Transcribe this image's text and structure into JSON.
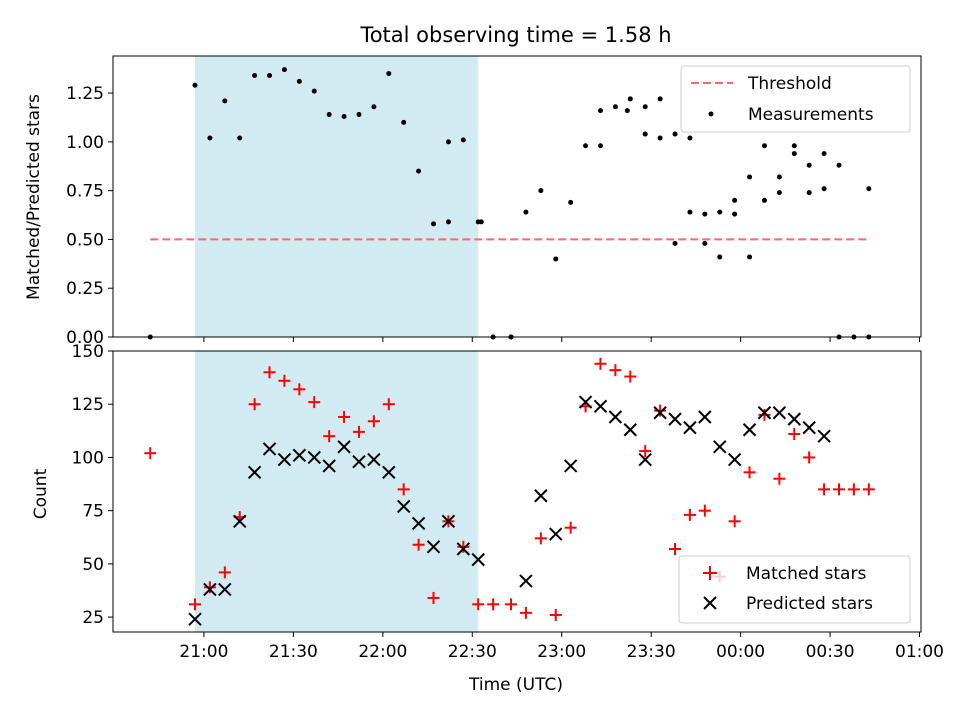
{
  "chart_data": {
    "title": "Total observing time = 1.58 h",
    "xlabel": "Time (UTC)",
    "x_tick_labels": [
      "21:00",
      "21:30",
      "22:00",
      "22:30",
      "23:00",
      "23:30",
      "00:00",
      "00:30",
      "01:00"
    ],
    "x_ticks_min": [
      60,
      90,
      120,
      150,
      180,
      210,
      240,
      270,
      300
    ],
    "xlim_min": [
      29.5,
      300.5
    ],
    "shaded_region_min": [
      57,
      152
    ],
    "shade_color": "#add8e6",
    "panels": [
      {
        "type": "scatter",
        "ylabel": "Matched/Predicted stars",
        "ylim": [
          0,
          1.44
        ],
        "y_ticks": [
          0.0,
          0.25,
          0.5,
          0.75,
          1.0,
          1.25
        ],
        "y_tick_labels": [
          "0.00",
          "0.25",
          "0.50",
          "0.75",
          "1.00",
          "1.25"
        ],
        "threshold": {
          "name": "Threshold",
          "value": 0.5,
          "x_range_min": [
            42,
            283
          ],
          "color": "#ff6666"
        },
        "series": [
          {
            "name": "Measurements",
            "color": "#000000",
            "x_min": [
              42,
              57,
              62,
              67,
              72,
              77,
              82,
              87,
              92,
              97,
              102,
              107,
              112,
              117,
              122,
              127,
              132,
              137,
              142,
              147,
              152,
              157,
              163,
              193,
              202,
              208,
              213,
              218,
              223,
              228,
              233,
              238,
              243,
              248,
              253,
              258,
              263,
              268,
              273,
              283,
              142,
              153,
              163,
              168,
              173,
              178,
              183,
              188,
              193,
              198,
              203,
              208,
              213,
              218,
              223,
              228,
              233,
              238,
              243,
              248,
              253,
              258,
              263,
              268,
              273,
              278,
              283
            ],
            "y": [
              0.0,
              1.29,
              1.02,
              1.21,
              1.02,
              1.34,
              1.34,
              1.37,
              1.31,
              1.26,
              1.14,
              1.13,
              1.14,
              1.18,
              1.35,
              1.1,
              0.85,
              0.58,
              1.0,
              1.01,
              0.59,
              0.0,
              0.0,
              0.98,
              1.16,
              1.18,
              1.22,
              1.04,
              1.02,
              0.48,
              0.64,
              0.63,
              0.41,
              0.7,
              0.82,
              0.98,
              0.74,
              0.94,
              0.88,
              0.76,
              0.59,
              0.59,
              0.0,
              0.64,
              0.75,
              0.4,
              0.69,
              0.98,
              1.16,
              1.18,
              1.22,
              1.04,
              1.02,
              0.48,
              0.64,
              0.63,
              0.41,
              0.7,
              0.82,
              0.98,
              0.74,
              0.94,
              0.88,
              0.76,
              0.0,
              0.0,
              0.0
            ]
          }
        ]
      },
      {
        "type": "scatter",
        "ylabel": "Count",
        "ylim": [
          18,
          150
        ],
        "y_ticks": [
          25,
          50,
          75,
          100,
          125,
          150
        ],
        "y_tick_labels": [
          "25",
          "50",
          "75",
          "100",
          "125",
          "150"
        ],
        "series": [
          {
            "name": "Matched stars",
            "marker": "plus",
            "color": "#ff0000",
            "x_min": [
              42,
              57,
              62,
              67,
              72,
              77,
              82,
              87,
              92,
              97,
              102,
              107,
              112,
              117,
              122,
              127,
              132,
              137,
              142,
              147,
              152,
              157,
              163,
              168,
              173,
              178,
              183,
              188,
              193,
              198,
              203,
              208,
              213,
              218,
              223,
              228,
              233,
              238,
              243,
              248,
              253,
              258,
              263,
              268,
              273,
              278,
              283
            ],
            "y": [
              102,
              31,
              39,
              46,
              72,
              125,
              140,
              136,
              132,
              126,
              110,
              119,
              112,
              117,
              125,
              85,
              59,
              34,
              70,
              58,
              31,
              31,
              31,
              27,
              62,
              26,
              67,
              124,
              144,
              141,
              138,
              103,
              122,
              57,
              73,
              75,
              44,
              70,
              93,
              120,
              90,
              111,
              100,
              85,
              85,
              85,
              85
            ]
          },
          {
            "name": "Predicted stars",
            "marker": "x",
            "color": "#000000",
            "x_min": [
              57,
              62,
              67,
              72,
              77,
              82,
              87,
              92,
              97,
              102,
              107,
              112,
              117,
              122,
              127,
              132,
              137,
              142,
              147,
              152,
              168,
              173,
              178,
              183,
              188,
              193,
              198,
              203,
              208,
              213,
              218,
              223,
              228,
              233,
              238,
              243,
              248,
              253,
              258,
              263,
              268
            ],
            "y": [
              24,
              38,
              38,
              70,
              93,
              104,
              99,
              101,
              100,
              96,
              105,
              98,
              99,
              93,
              77,
              69,
              58,
              70,
              57,
              52,
              42,
              82,
              64,
              96,
              126,
              124,
              119,
              113,
              99,
              121,
              118,
              114,
              119,
              105,
              99,
              113,
              121,
              121,
              118,
              114,
              110
            ]
          }
        ]
      }
    ]
  }
}
